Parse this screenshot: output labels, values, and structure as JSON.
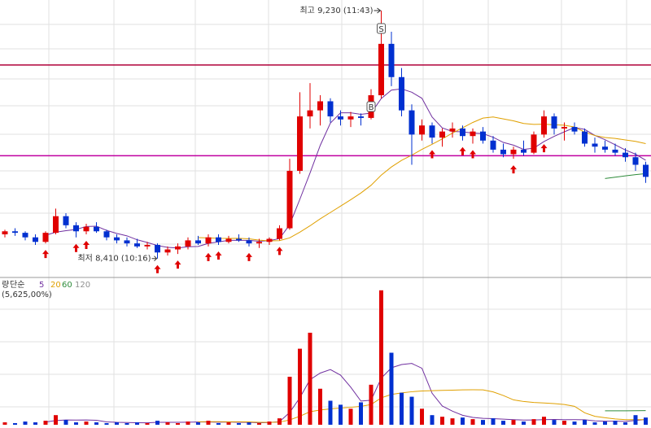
{
  "chart_data": {
    "type": "candlestick",
    "high_label": "최고 9,230 (11:43)",
    "low_label": "최저 8,410 (10:16)",
    "open": [
      8490,
      8500,
      8495,
      8480,
      8465,
      8495,
      8550,
      8520,
      8500,
      8515,
      8500,
      8480,
      8470,
      8460,
      8450,
      8455,
      8430,
      8440,
      8450,
      8470,
      8460,
      8480,
      8465,
      8475,
      8470,
      8460,
      8465,
      8475,
      8510,
      8700,
      8880,
      8900,
      8930,
      8880,
      8870,
      8880,
      8875,
      8950,
      9120,
      9010,
      8900,
      8820,
      8850,
      8810,
      8830,
      8840,
      8815,
      8830,
      8800,
      8770,
      8755,
      8770,
      8760,
      8820,
      8880,
      8840,
      8845,
      8830,
      8790,
      8780,
      8770,
      8760,
      8745,
      8720
    ],
    "high": [
      8505,
      8510,
      8500,
      8490,
      8500,
      8575,
      8560,
      8530,
      8525,
      8530,
      8505,
      8490,
      8480,
      8475,
      8465,
      8460,
      8450,
      8460,
      8480,
      8485,
      8490,
      8490,
      8485,
      8490,
      8480,
      8475,
      8480,
      8520,
      8740,
      8960,
      8990,
      8950,
      8940,
      8900,
      8895,
      8890,
      8970,
      9230,
      9160,
      9040,
      8920,
      8870,
      8860,
      8840,
      8860,
      8850,
      8840,
      8845,
      8815,
      8790,
      8780,
      8800,
      8830,
      8900,
      8890,
      8860,
      8860,
      8840,
      8810,
      8800,
      8790,
      8775,
      8760,
      8730
    ],
    "low": [
      8480,
      8485,
      8470,
      8455,
      8460,
      8490,
      8510,
      8480,
      8490,
      8495,
      8470,
      8460,
      8450,
      8445,
      8440,
      8410,
      8420,
      8425,
      8440,
      8455,
      8450,
      8455,
      8460,
      8465,
      8450,
      8445,
      8455,
      8470,
      8505,
      8690,
      8840,
      8850,
      8860,
      8850,
      8845,
      8850,
      8870,
      8940,
      8980,
      8880,
      8720,
      8800,
      8790,
      8780,
      8810,
      8800,
      8790,
      8790,
      8760,
      8745,
      8740,
      8750,
      8755,
      8810,
      8820,
      8800,
      8820,
      8780,
      8760,
      8760,
      8750,
      8730,
      8700,
      8660
    ],
    "close": [
      8500,
      8495,
      8480,
      8465,
      8495,
      8550,
      8520,
      8500,
      8515,
      8500,
      8480,
      8470,
      8460,
      8450,
      8455,
      8430,
      8440,
      8450,
      8470,
      8460,
      8480,
      8465,
      8475,
      8470,
      8460,
      8465,
      8475,
      8510,
      8700,
      8880,
      8900,
      8930,
      8880,
      8870,
      8880,
      8875,
      8950,
      9120,
      9010,
      8900,
      8820,
      8850,
      8810,
      8830,
      8840,
      8815,
      8830,
      8800,
      8770,
      8755,
      8770,
      8760,
      8820,
      8880,
      8840,
      8845,
      8830,
      8790,
      8780,
      8770,
      8760,
      8745,
      8720,
      8680
    ],
    "volume": [
      3000,
      2000,
      4000,
      3000,
      5000,
      12000,
      6000,
      3000,
      4000,
      3000,
      2000,
      3000,
      2000,
      3000,
      2000,
      5000,
      3000,
      2000,
      4000,
      3000,
      5000,
      2000,
      3000,
      2000,
      3000,
      2000,
      4000,
      8000,
      60000,
      95000,
      115000,
      45000,
      30000,
      25000,
      20000,
      28000,
      50000,
      168000,
      90000,
      40000,
      35000,
      20000,
      12000,
      10000,
      8000,
      9000,
      7000,
      6000,
      8000,
      5000,
      6000,
      4000,
      7000,
      10000,
      6000,
      5000,
      4000,
      6000,
      3000,
      4000,
      5000,
      3000,
      12000,
      9000
    ],
    "ylim": [
      8350,
      9265
    ],
    "volume_ylim": [
      0,
      180000
    ],
    "up_color": "#e00000",
    "down_color": "#0030d0",
    "levels": [
      {
        "value": 9050,
        "color": "#b0003a"
      },
      {
        "value": 8750,
        "color": "#c000a0"
      }
    ],
    "moving_averages": [
      {
        "period": 5,
        "color": "#7030a0"
      },
      {
        "period": 20,
        "color": "#e0a000"
      },
      {
        "period": 60,
        "color": "#2e8b3a"
      },
      {
        "period": 120,
        "color": "#909090"
      }
    ],
    "buy_signals": [
      4,
      7,
      8,
      15,
      17,
      20,
      21,
      24,
      27,
      42,
      45,
      46,
      50,
      53
    ],
    "trade_markers": [
      {
        "label": "S",
        "index": 37
      },
      {
        "label": "B",
        "index": 36
      }
    ],
    "volume_legend_title": "량",
    "ma_type": "단순",
    "volume_ratio": "(5,625,00%)"
  }
}
